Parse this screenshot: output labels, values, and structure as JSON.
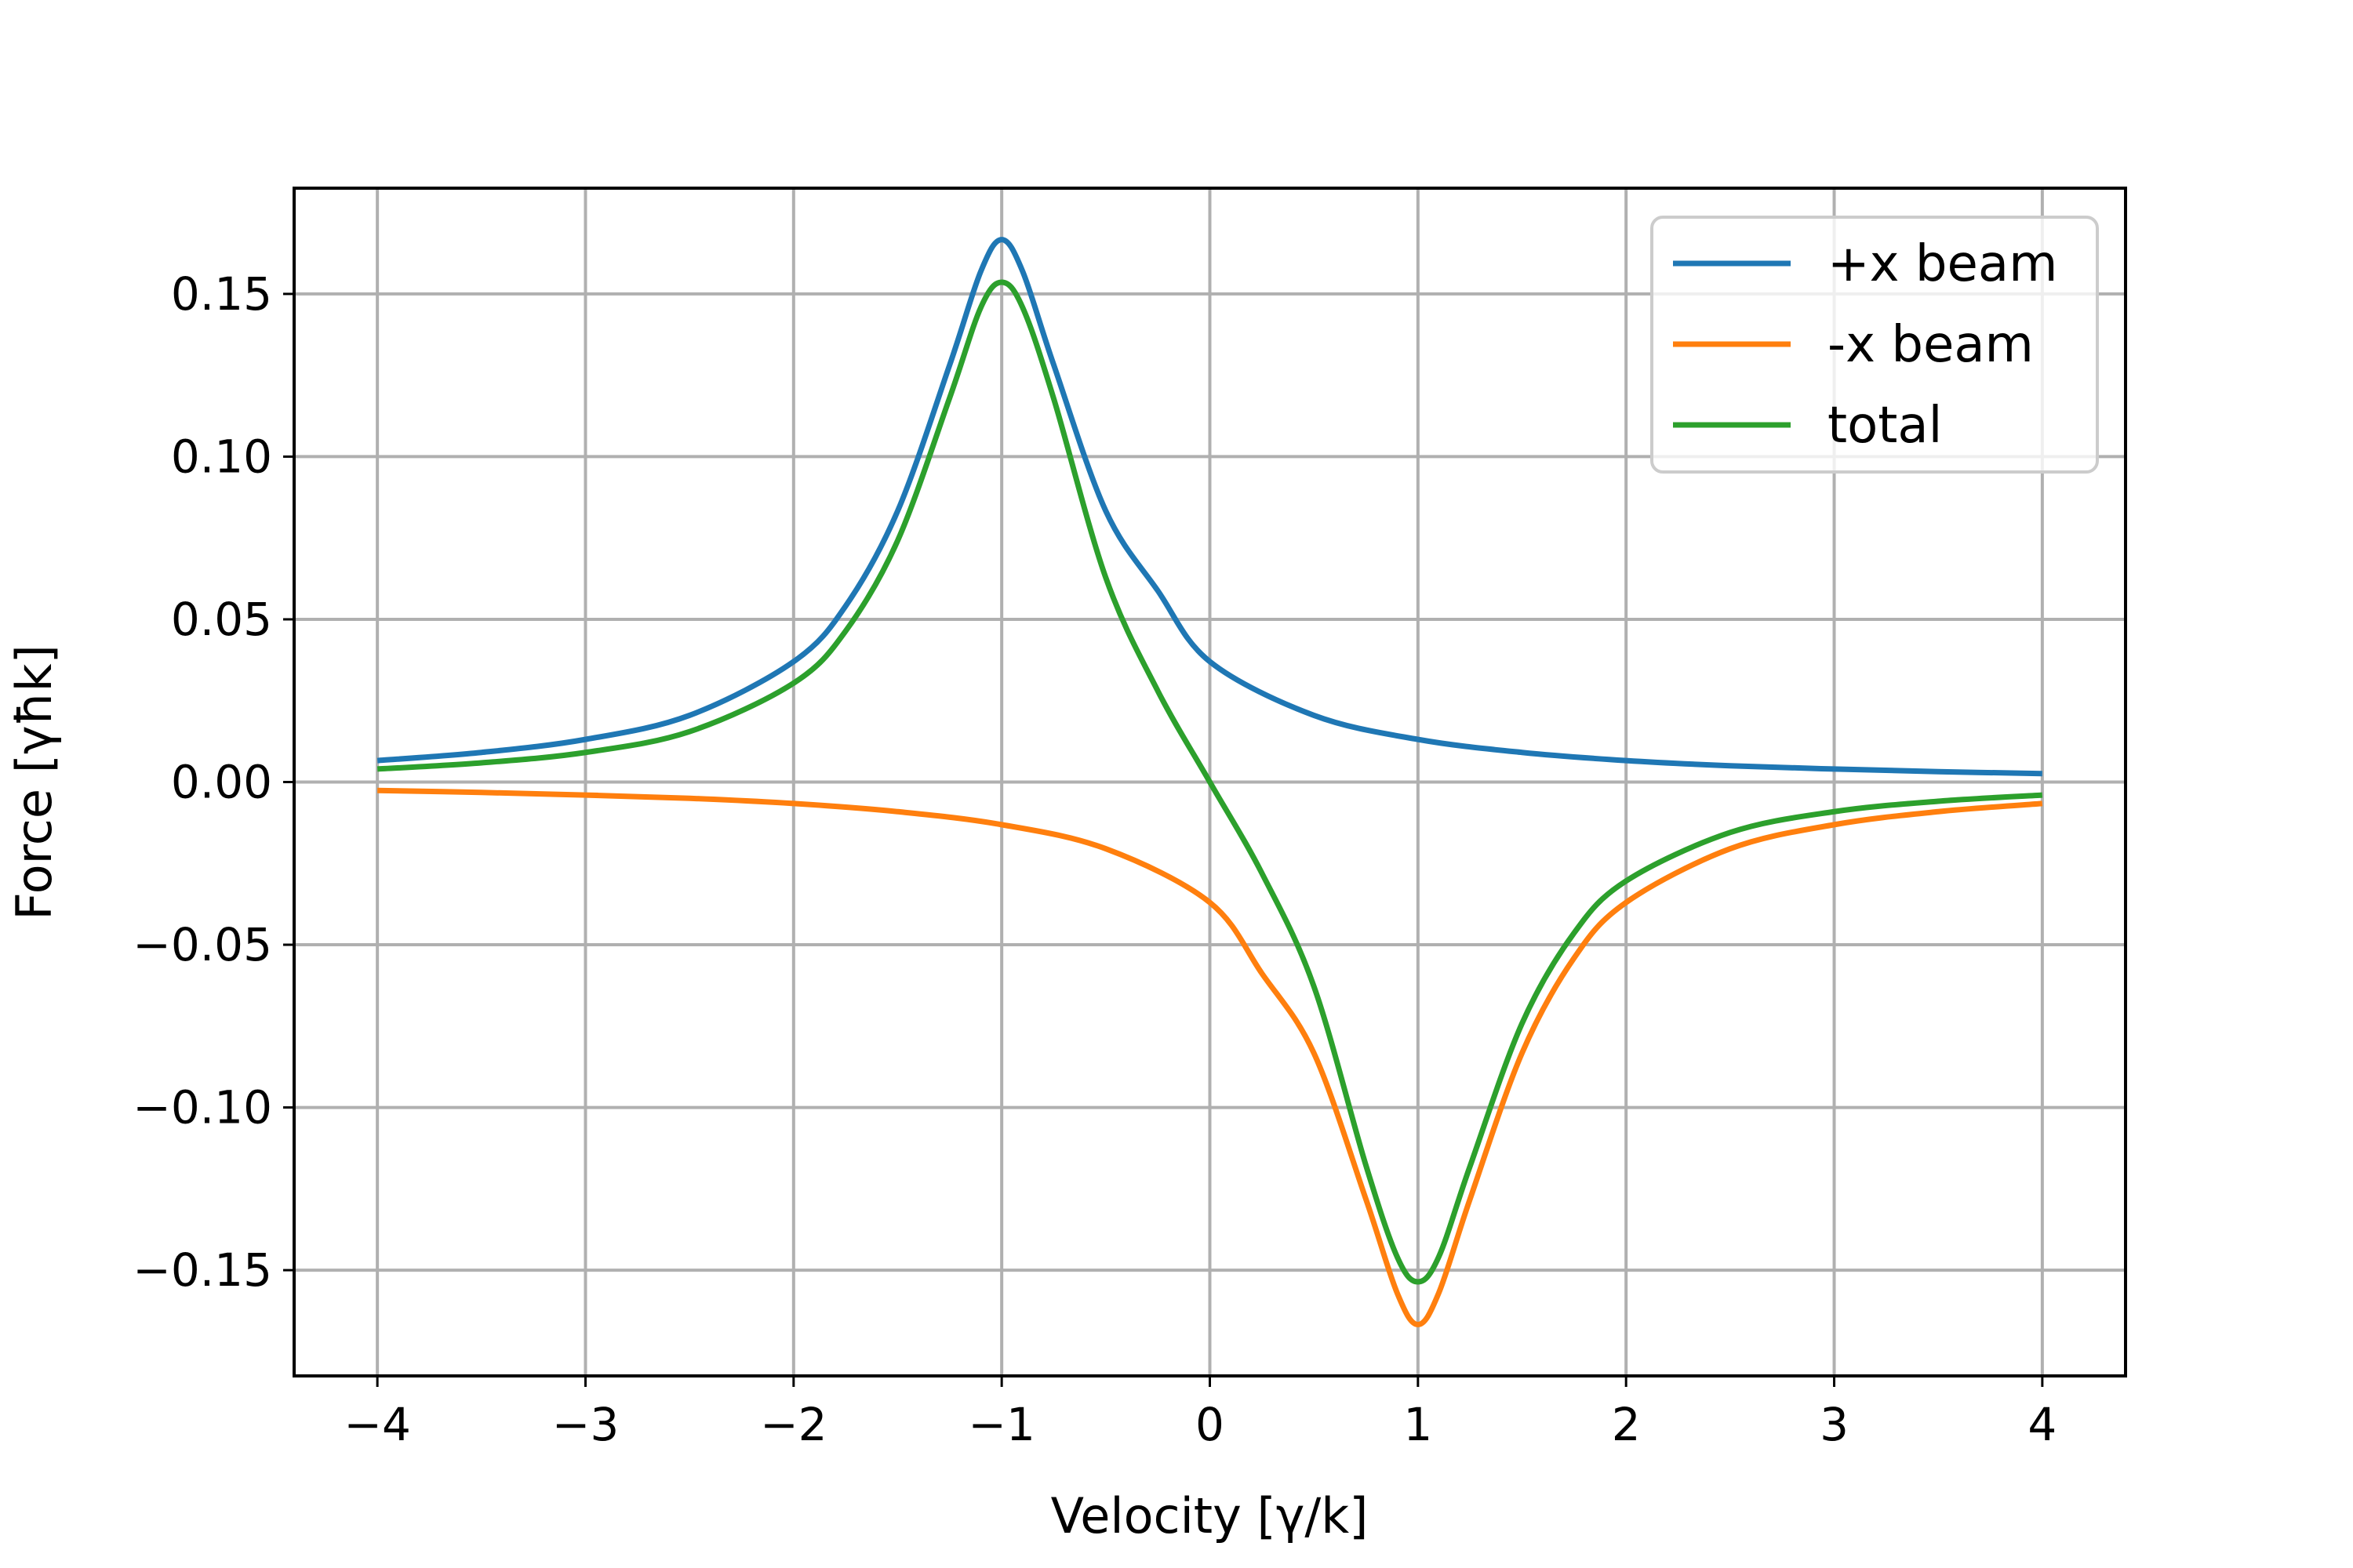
{
  "chart_data": {
    "type": "line",
    "title": "",
    "xlabel": "Velocity [γ/k]",
    "ylabel": "Force [γħk]",
    "xlim": [
      -4.4,
      4.4
    ],
    "ylim": [
      -0.1825,
      0.1825
    ],
    "xticks": [
      -4,
      -3,
      -2,
      -1,
      0,
      1,
      2,
      3,
      4
    ],
    "xtick_labels": [
      "−4",
      "−3",
      "−2",
      "−1",
      "0",
      "1",
      "2",
      "3",
      "4"
    ],
    "yticks": [
      0.15,
      0.1,
      0.05,
      0.0,
      -0.05,
      -0.1,
      -0.15
    ],
    "ytick_labels": [
      "0.15",
      "0.10",
      "0.05",
      "0.00",
      "−0.05",
      "−0.10",
      "−0.15"
    ],
    "grid": true,
    "legend_position": "top-right",
    "series": [
      {
        "name": "+x beam",
        "color": "#1f77b4",
        "x": [
          -4.0,
          -3.5,
          -3.0,
          -2.5,
          -2.0,
          -1.75,
          -1.5,
          -1.25,
          -1.1,
          -1.0,
          -0.9,
          -0.75,
          -0.5,
          -0.25,
          0.0,
          0.5,
          1.0,
          1.5,
          2.0,
          2.5,
          3.0,
          3.5,
          4.0
        ],
        "y": [
          0.0066,
          0.0091,
          0.0131,
          0.0205,
          0.037,
          0.0541,
          0.0833,
          0.1282,
          0.157,
          0.1667,
          0.157,
          0.1282,
          0.0833,
          0.0588,
          0.037,
          0.0205,
          0.0131,
          0.0091,
          0.0066,
          0.005,
          0.004,
          0.0032,
          0.0026
        ]
      },
      {
        "name": "-x beam",
        "color": "#ff7f0e",
        "x": [
          -4.0,
          -3.5,
          -3.0,
          -2.5,
          -2.0,
          -1.5,
          -1.0,
          -0.5,
          0.0,
          0.25,
          0.5,
          0.75,
          0.9,
          1.0,
          1.1,
          1.25,
          1.5,
          1.75,
          2.0,
          2.5,
          3.0,
          3.5,
          4.0
        ],
        "y": [
          -0.0026,
          -0.0032,
          -0.004,
          -0.005,
          -0.0066,
          -0.0091,
          -0.0131,
          -0.0205,
          -0.037,
          -0.0588,
          -0.0833,
          -0.1282,
          -0.157,
          -0.1667,
          -0.157,
          -0.1282,
          -0.0833,
          -0.0541,
          -0.037,
          -0.0205,
          -0.0131,
          -0.0091,
          -0.0066
        ]
      },
      {
        "name": "total",
        "color": "#2ca02c",
        "x": [
          -4.0,
          -3.5,
          -3.0,
          -2.5,
          -2.0,
          -1.75,
          -1.5,
          -1.25,
          -1.1,
          -1.0,
          -0.9,
          -0.75,
          -0.5,
          -0.25,
          0.0,
          0.25,
          0.5,
          0.75,
          0.9,
          1.0,
          1.1,
          1.25,
          1.5,
          1.75,
          2.0,
          2.5,
          3.0,
          3.5,
          4.0
        ],
        "y": [
          0.004,
          0.0059,
          0.0091,
          0.0155,
          0.0304,
          0.0464,
          0.0742,
          0.1181,
          0.1459,
          0.1536,
          0.1459,
          0.1178,
          0.0628,
          0.028,
          0.0,
          -0.028,
          -0.0628,
          -0.1178,
          -0.1459,
          -0.1536,
          -0.1459,
          -0.1181,
          -0.0742,
          -0.0464,
          -0.0304,
          -0.0155,
          -0.0091,
          -0.0059,
          -0.004
        ]
      }
    ]
  }
}
